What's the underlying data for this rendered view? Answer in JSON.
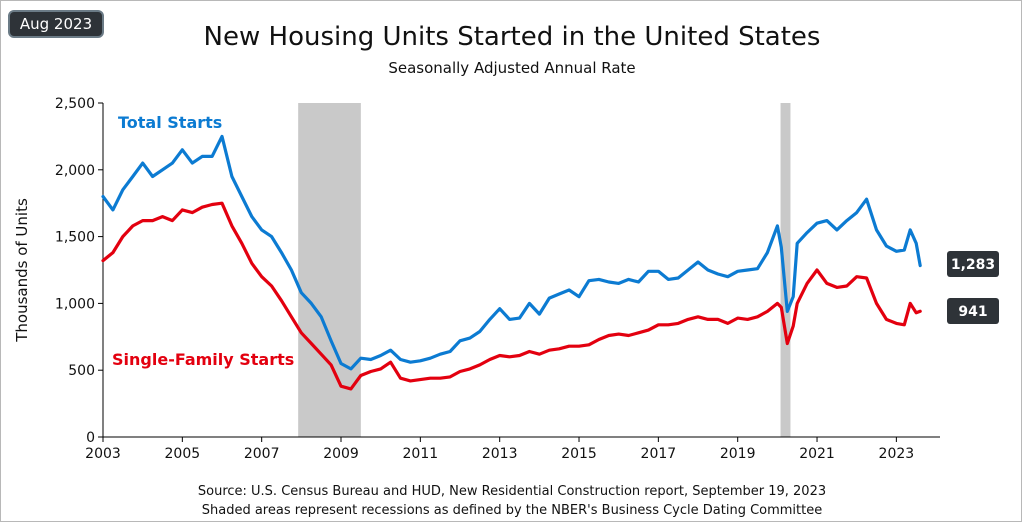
{
  "badge": "Aug 2023",
  "source": "Source:  U.S. Census Bureau and HUD, New  Residential Construction report, September  19, 2023",
  "note": "Shaded areas represent recessions as defined by the NBER's  Business Cycle Dating Committee",
  "colors": {
    "total": "#0c7bd2",
    "single": "#e3000f",
    "recession": "#c9c9c9",
    "callout_bg": "#2e3338"
  },
  "chart_data": {
    "type": "line",
    "title": "New Housing Units Started in the United States",
    "subtitle": "Seasonally Adjusted Annual Rate",
    "ylabel": "Thousands of Units",
    "xlabel": "",
    "xlim": [
      2003,
      2024.1
    ],
    "ylim": [
      0,
      2500
    ],
    "yticks": [
      0,
      500,
      1000,
      1500,
      2000,
      2500
    ],
    "ytick_labels": [
      "0",
      "500",
      "1,000",
      "1,500",
      "2,000",
      "2,500"
    ],
    "xticks": [
      2003,
      2005,
      2007,
      2009,
      2011,
      2013,
      2015,
      2017,
      2019,
      2021,
      2023
    ],
    "xtick_labels": [
      "2003",
      "2005",
      "2007",
      "2009",
      "2011",
      "2013",
      "2015",
      "2017",
      "2019",
      "2021",
      "2023"
    ],
    "grid": false,
    "recessions": [
      [
        2007.92,
        2009.5
      ],
      [
        2020.08,
        2020.33
      ]
    ],
    "series": [
      {
        "name": "Total Starts",
        "x": [
          2003.0,
          2003.25,
          2003.5,
          2003.75,
          2004.0,
          2004.25,
          2004.5,
          2004.75,
          2005.0,
          2005.25,
          2005.5,
          2005.75,
          2006.0,
          2006.25,
          2006.5,
          2006.75,
          2007.0,
          2007.25,
          2007.5,
          2007.75,
          2008.0,
          2008.25,
          2008.5,
          2008.75,
          2009.0,
          2009.25,
          2009.5,
          2009.75,
          2010.0,
          2010.25,
          2010.5,
          2010.75,
          2011.0,
          2011.25,
          2011.5,
          2011.75,
          2012.0,
          2012.25,
          2012.5,
          2012.75,
          2013.0,
          2013.25,
          2013.5,
          2013.75,
          2014.0,
          2014.25,
          2014.5,
          2014.75,
          2015.0,
          2015.25,
          2015.5,
          2015.75,
          2016.0,
          2016.25,
          2016.5,
          2016.75,
          2017.0,
          2017.25,
          2017.5,
          2017.75,
          2018.0,
          2018.25,
          2018.5,
          2018.75,
          2019.0,
          2019.25,
          2019.5,
          2019.75,
          2020.0,
          2020.1,
          2020.25,
          2020.4,
          2020.5,
          2020.75,
          2021.0,
          2021.25,
          2021.5,
          2021.75,
          2022.0,
          2022.25,
          2022.5,
          2022.75,
          2023.0,
          2023.2,
          2023.35,
          2023.5,
          2023.6
        ],
        "values": [
          1800,
          1700,
          1850,
          1950,
          2050,
          1950,
          2000,
          2050,
          2150,
          2050,
          2100,
          2100,
          2250,
          1950,
          1800,
          1650,
          1550,
          1500,
          1380,
          1250,
          1080,
          1000,
          900,
          720,
          550,
          510,
          590,
          580,
          610,
          650,
          580,
          560,
          570,
          590,
          620,
          640,
          720,
          740,
          790,
          880,
          960,
          880,
          890,
          1000,
          920,
          1040,
          1070,
          1100,
          1050,
          1170,
          1180,
          1160,
          1150,
          1180,
          1160,
          1240,
          1240,
          1180,
          1190,
          1250,
          1310,
          1250,
          1220,
          1200,
          1240,
          1250,
          1260,
          1380,
          1580,
          1420,
          940,
          1050,
          1450,
          1530,
          1600,
          1620,
          1550,
          1620,
          1680,
          1780,
          1550,
          1430,
          1390,
          1400,
          1550,
          1450,
          1283
        ]
      },
      {
        "name": "Single-Family Starts",
        "x": [
          2003.0,
          2003.25,
          2003.5,
          2003.75,
          2004.0,
          2004.25,
          2004.5,
          2004.75,
          2005.0,
          2005.25,
          2005.5,
          2005.75,
          2006.0,
          2006.25,
          2006.5,
          2006.75,
          2007.0,
          2007.25,
          2007.5,
          2007.75,
          2008.0,
          2008.25,
          2008.5,
          2008.75,
          2009.0,
          2009.25,
          2009.5,
          2009.75,
          2010.0,
          2010.25,
          2010.5,
          2010.75,
          2011.0,
          2011.25,
          2011.5,
          2011.75,
          2012.0,
          2012.25,
          2012.5,
          2012.75,
          2013.0,
          2013.25,
          2013.5,
          2013.75,
          2014.0,
          2014.25,
          2014.5,
          2014.75,
          2015.0,
          2015.25,
          2015.5,
          2015.75,
          2016.0,
          2016.25,
          2016.5,
          2016.75,
          2017.0,
          2017.25,
          2017.5,
          2017.75,
          2018.0,
          2018.25,
          2018.5,
          2018.75,
          2019.0,
          2019.25,
          2019.5,
          2019.75,
          2020.0,
          2020.1,
          2020.25,
          2020.4,
          2020.5,
          2020.75,
          2021.0,
          2021.25,
          2021.5,
          2021.75,
          2022.0,
          2022.25,
          2022.5,
          2022.75,
          2023.0,
          2023.2,
          2023.35,
          2023.5,
          2023.6
        ],
        "values": [
          1320,
          1380,
          1500,
          1580,
          1620,
          1620,
          1650,
          1620,
          1700,
          1680,
          1720,
          1740,
          1750,
          1580,
          1450,
          1300,
          1200,
          1130,
          1020,
          900,
          780,
          700,
          620,
          540,
          380,
          360,
          460,
          490,
          510,
          560,
          440,
          420,
          430,
          440,
          440,
          450,
          490,
          510,
          540,
          580,
          610,
          600,
          610,
          640,
          620,
          650,
          660,
          680,
          680,
          690,
          730,
          760,
          770,
          760,
          780,
          800,
          840,
          840,
          850,
          880,
          900,
          880,
          880,
          850,
          890,
          880,
          900,
          940,
          1000,
          970,
          700,
          830,
          1000,
          1150,
          1250,
          1150,
          1120,
          1130,
          1200,
          1190,
          1000,
          880,
          850,
          840,
          1000,
          930,
          941
        ]
      }
    ],
    "annotations": [
      {
        "text": "Total Starts",
        "series": 0
      },
      {
        "text": "Single-Family Starts",
        "series": 1
      },
      {
        "text": "1,283",
        "series": 0,
        "kind": "last-value"
      },
      {
        "text": "941",
        "series": 1,
        "kind": "last-value"
      }
    ]
  }
}
